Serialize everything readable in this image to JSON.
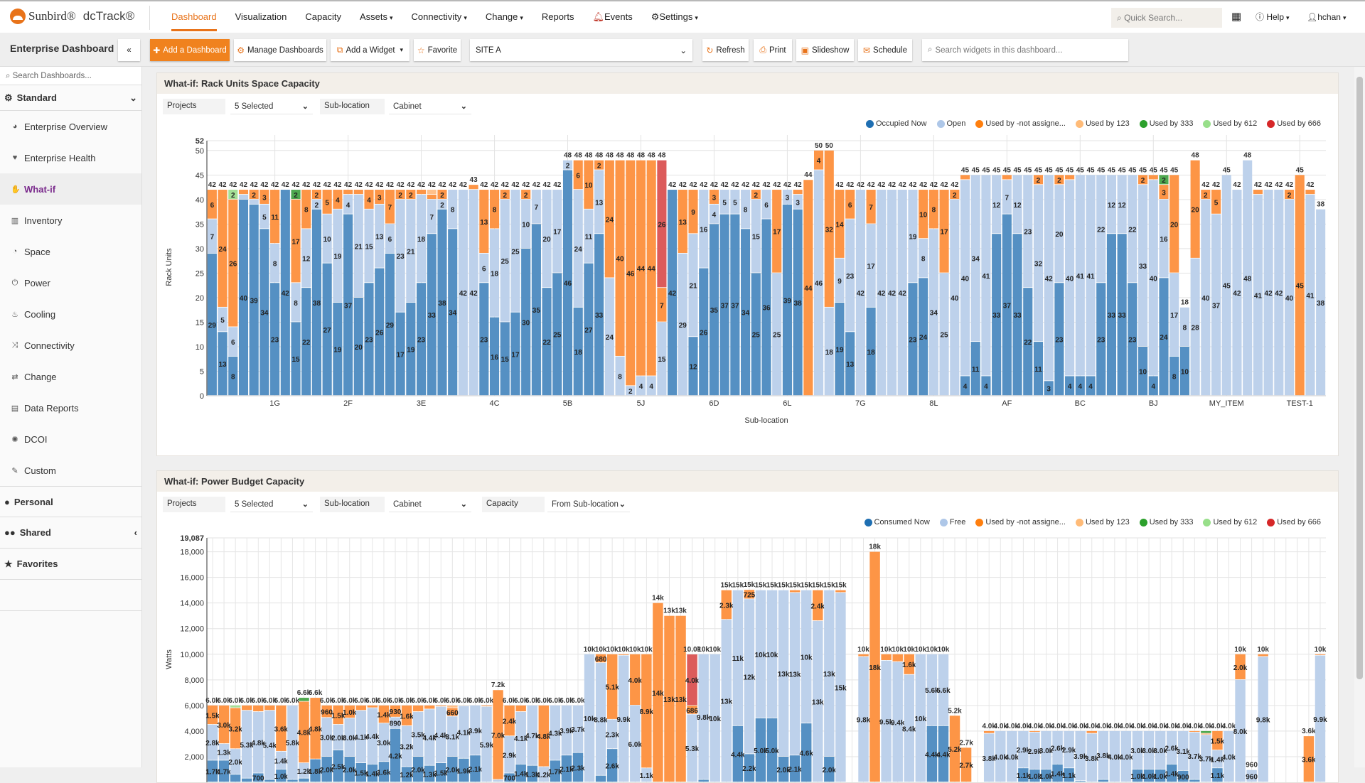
{
  "app": {
    "brand": "Sunbird®",
    "product": "dcTrack®"
  },
  "nav": {
    "items": [
      {
        "label": "Dashboard",
        "active": true
      },
      {
        "label": "Visualization"
      },
      {
        "label": "Capacity"
      },
      {
        "label": "Assets",
        "caret": true
      },
      {
        "label": "Connectivity",
        "caret": true
      },
      {
        "label": "Change",
        "caret": true
      },
      {
        "label": "Reports"
      },
      {
        "label": "Events",
        "icon": "bell-icon"
      },
      {
        "label": "Settings",
        "icon": "gear-icon",
        "caret": true
      }
    ],
    "quick_search_placeholder": "Quick Search...",
    "help": "Help",
    "user": "hchan"
  },
  "toolbar": {
    "title": "Enterprise Dashboard",
    "collapse": "«",
    "add_dashboard": "Add a Dashboard",
    "manage": "Manage Dashboards",
    "add_widget": "Add a Widget",
    "favorite": "Favorite",
    "site": "SITE A",
    "refresh": "Refresh",
    "print": "Print",
    "slideshow": "Slideshow",
    "schedule": "Schedule",
    "widget_search_placeholder": "Search widgets in this dashboard..."
  },
  "sidebar": {
    "search_placeholder": "Search Dashboards...",
    "standard": "Standard",
    "items": [
      {
        "label": "Enterprise Overview",
        "icon": "globe-icon",
        "glyph": "◕"
      },
      {
        "label": "Enterprise Health",
        "icon": "heartbeat-icon",
        "glyph": "♥"
      },
      {
        "label": "What-if",
        "icon": "thumbs-up-icon",
        "glyph": "✋",
        "active": true
      },
      {
        "label": "Inventory",
        "icon": "barcode-icon",
        "glyph": "▥"
      },
      {
        "label": "Space",
        "icon": "dashboard-gauge-icon",
        "glyph": "◔"
      },
      {
        "label": "Power",
        "icon": "power-icon",
        "glyph": "⏻"
      },
      {
        "label": "Cooling",
        "icon": "fire-icon",
        "glyph": "♨"
      },
      {
        "label": "Connectivity",
        "icon": "random-icon",
        "glyph": "⤨"
      },
      {
        "label": "Change",
        "icon": "exchange-icon",
        "glyph": "⇄"
      },
      {
        "label": "Data Reports",
        "icon": "table-icon",
        "glyph": "▤"
      },
      {
        "label": "DCOI",
        "icon": "cog-icon",
        "glyph": "✺"
      },
      {
        "label": "Custom",
        "icon": "wrench-icon",
        "glyph": "✎"
      }
    ],
    "personal": "Personal",
    "shared": "Shared",
    "favorites": "Favorites"
  },
  "colors": {
    "occupied": "#5590c3",
    "open": "#bdd1eb",
    "not_assigned": "#fd9546",
    "by123": "#ffc08a",
    "by333": "#4fa84f",
    "by612": "#a4e096",
    "by666": "#dc5b5b",
    "legend": [
      "#1f6fb2",
      "#aec7e8",
      "#ff7f0e",
      "#ffbb78",
      "#2ca02c",
      "#98df8a",
      "#d62728"
    ]
  },
  "widget1": {
    "title": "What-if: Rack Units Space Capacity",
    "filters": [
      {
        "label": "Projects",
        "value": "5 Selected"
      },
      {
        "label": "Sub-location",
        "value": "Cabinet"
      }
    ],
    "legend": [
      "Occupied Now",
      "Open",
      "Used by -not assigne...",
      "Used by 123",
      "Used by 333",
      "Used by 612",
      "Used by 666"
    ]
  },
  "widget2": {
    "title": "What-if: Power Budget Capacity",
    "filters": [
      {
        "label": "Projects",
        "value": "5 Selected"
      },
      {
        "label": "Sub-location",
        "value": "Cabinet"
      },
      {
        "label": "Capacity",
        "value": "From Sub-location"
      }
    ],
    "legend": [
      "Consumed Now",
      "Free",
      "Used by -not assigne...",
      "Used by 123",
      "Used by 333",
      "Used by 612",
      "Used by 666"
    ]
  },
  "chart_data": [
    {
      "type": "bar",
      "stacked": true,
      "ylabel": "Rack Units",
      "xlabel": "Sub-location",
      "ylim": [
        0,
        52
      ],
      "yticks": [
        0,
        5,
        10,
        15,
        20,
        25,
        30,
        35,
        40,
        45,
        50,
        52
      ],
      "x_tick_labels": [
        "1G",
        "2F",
        "3E",
        "4C",
        "5B",
        "5J",
        "6D",
        "6L",
        "7G",
        "8L",
        "AF",
        "BC",
        "BJ",
        "MY_ITEM",
        "TEST-1"
      ],
      "series_order": [
        "Occupied Now",
        "Open",
        "Used by -not assigned",
        "Used by 123",
        "Used by 333",
        "Used by 612",
        "Used by 666"
      ],
      "bars": [
        [
          29,
          7,
          6
        ],
        [
          13,
          5,
          24
        ],
        [
          8,
          6,
          26,
          0,
          0,
          2
        ],
        [
          40,
          1,
          1
        ],
        [
          39,
          1,
          2
        ],
        [
          34,
          5,
          3
        ],
        [
          23,
          8,
          11
        ],
        [
          42
        ],
        [
          15,
          8,
          17,
          0,
          2
        ],
        [
          22,
          12,
          8
        ],
        [
          38,
          2,
          2
        ],
        [
          27,
          10,
          5
        ],
        [
          19,
          19,
          4
        ],
        [
          37,
          4,
          1
        ],
        [
          20,
          21,
          1
        ],
        [
          23,
          15,
          4
        ],
        [
          26,
          13,
          3
        ],
        [
          29,
          6,
          7
        ],
        [
          17,
          23,
          2
        ],
        [
          19,
          21,
          2
        ],
        [
          23,
          18,
          1
        ],
        [
          33,
          7,
          1,
          1
        ],
        [
          38,
          2,
          2
        ],
        [
          34,
          8
        ],
        [
          0,
          42
        ],
        [
          0,
          42,
          1
        ],
        [
          23,
          6,
          13
        ],
        [
          16,
          18,
          8
        ],
        [
          15,
          25,
          2
        ],
        [
          17,
          25
        ],
        [
          30,
          10,
          2
        ],
        [
          35,
          7
        ],
        [
          22,
          20
        ],
        [
          25,
          17
        ],
        [
          46,
          2
        ],
        [
          18,
          24,
          6
        ],
        [
          27,
          11,
          10
        ],
        [
          33,
          13,
          2
        ],
        [
          0,
          24,
          24
        ],
        [
          0,
          8,
          40
        ],
        [
          0,
          2,
          46
        ],
        [
          0,
          4,
          44
        ],
        [
          0,
          4,
          44
        ],
        [
          0,
          15,
          7,
          0,
          0,
          0,
          26
        ],
        [
          42
        ],
        [
          0,
          29,
          13
        ],
        [
          12,
          21,
          9
        ],
        [
          26,
          16
        ],
        [
          35,
          4,
          3
        ],
        [
          37,
          5
        ],
        [
          37,
          5
        ],
        [
          34,
          8
        ],
        [
          25,
          15,
          2
        ],
        [
          36,
          6
        ],
        [
          0,
          25,
          17
        ],
        [
          39,
          3
        ],
        [
          38,
          3,
          1
        ],
        [
          0,
          0,
          44
        ],
        [
          0,
          46,
          4
        ],
        [
          0,
          18,
          32
        ],
        [
          19,
          9,
          14
        ],
        [
          13,
          23,
          6
        ],
        [
          0,
          42
        ],
        [
          18,
          17,
          7
        ],
        [
          0,
          42
        ],
        [
          0,
          42
        ],
        [
          0,
          42
        ],
        [
          23,
          19
        ],
        [
          24,
          8,
          10
        ],
        [
          0,
          34,
          8
        ],
        [
          0,
          25,
          17
        ],
        [
          0,
          40,
          2
        ],
        [
          4,
          40,
          1
        ],
        [
          11,
          34
        ],
        [
          4,
          41
        ],
        [
          33,
          12
        ],
        [
          37,
          7,
          1
        ],
        [
          33,
          12
        ],
        [
          22,
          23
        ],
        [
          11,
          32,
          2
        ],
        [
          3,
          42
        ],
        [
          23,
          20,
          2
        ],
        [
          4,
          40,
          1
        ],
        [
          4,
          41
        ],
        [
          4,
          41
        ],
        [
          23,
          22
        ],
        [
          33,
          12
        ],
        [
          33,
          12
        ],
        [
          23,
          22
        ],
        [
          10,
          33,
          2
        ],
        [
          4,
          40,
          1
        ],
        [
          24,
          16,
          3,
          0,
          2
        ],
        [
          8,
          17,
          20
        ],
        [
          10,
          8
        ],
        [
          0,
          28,
          20
        ],
        [
          0,
          40,
          2
        ],
        [
          0,
          37,
          5
        ],
        [
          0,
          45
        ],
        [
          0,
          42
        ],
        [
          0,
          48
        ],
        [
          0,
          41,
          1
        ],
        [
          0,
          42
        ],
        [
          0,
          42
        ],
        [
          0,
          40,
          2
        ],
        [
          0,
          0,
          45
        ],
        [
          0,
          41,
          1
        ],
        [
          0,
          38
        ]
      ]
    },
    {
      "type": "bar",
      "stacked": true,
      "ylabel": "Watts",
      "ylim": [
        0,
        19087
      ],
      "yticks": [
        2000,
        4000,
        6000,
        8000,
        10000,
        12000,
        14000,
        16000,
        18000,
        19087
      ],
      "series_order": [
        "Consumed Now",
        "Free",
        "Used by -not assigned",
        "Used by 123",
        "Used by 333",
        "Used by 612",
        "Used by 666"
      ],
      "bars": [
        [
          1700,
          2800,
          1500
        ],
        [
          1700,
          1300,
          3000
        ],
        [
          600,
          2000,
          3200,
          0,
          0,
          200
        ],
        [
          300,
          5300,
          400
        ],
        [
          700,
          4800,
          500
        ],
        [
          200,
          5400,
          400
        ],
        [
          1000,
          1400,
          3600
        ],
        [
          200,
          5800
        ],
        [
          300,
          1200,
          4800,
          0,
          300
        ],
        [
          1800,
          0,
          4800
        ],
        [
          2000,
          3040,
          960
        ],
        [
          2500,
          2000,
          1500
        ],
        [
          2000,
          3000,
          1000
        ],
        [
          1500,
          4100,
          400
        ],
        [
          1400,
          4400,
          200
        ],
        [
          1600,
          3000,
          1400
        ],
        [
          4180,
          890,
          930
        ],
        [
          1200,
          3200,
          1600
        ],
        [
          2000,
          3500,
          500
        ],
        [
          1300,
          4400,
          300
        ],
        [
          1500,
          4400,
          100
        ],
        [
          2000,
          3140,
          660,
          200
        ],
        [
          1850,
          4100,
          50
        ],
        [
          2100,
          3900
        ],
        [
          0,
          5900,
          100
        ],
        [
          0,
          200,
          7000
        ],
        [
          700,
          2900,
          2400
        ],
        [
          1400,
          4100,
          500
        ],
        [
          1300,
          4700
        ],
        [
          0,
          1200,
          4800
        ],
        [
          1700,
          4300
        ],
        [
          2100,
          3900
        ],
        [
          2300,
          3700
        ],
        [
          0,
          10000
        ],
        [
          520,
          8800,
          680
        ],
        [
          2600,
          2300,
          5100
        ],
        [
          0,
          9900,
          100
        ],
        [
          0,
          6000,
          4000
        ],
        [
          0,
          1100,
          8900
        ],
        [
          0,
          0,
          14000
        ],
        [
          0,
          0,
          13000
        ],
        [
          0,
          0,
          13000
        ],
        [
          0,
          5300,
          686,
          0,
          0,
          0,
          4000
        ],
        [
          200,
          9800
        ],
        [
          0,
          10000
        ],
        [
          0,
          12700,
          2300
        ],
        [
          4400,
          10600
        ],
        [
          2200,
          12100,
          725
        ],
        [
          5000,
          10000
        ],
        [
          5000,
          10000
        ],
        [
          2000,
          13000
        ],
        [
          2100,
          12700,
          200
        ],
        [
          4600,
          10400
        ],
        [
          0,
          12600,
          2400
        ],
        [
          2000,
          13000
        ],
        [
          0,
          14800,
          200
        ],
        [
          0
        ],
        [
          0,
          9800,
          200
        ],
        [
          0,
          0,
          18000
        ],
        [
          0,
          9500,
          500
        ],
        [
          0,
          9400,
          600
        ],
        [
          0,
          8400,
          1600
        ],
        [
          0,
          10000
        ],
        [
          4400,
          5600
        ],
        [
          4400,
          5600
        ],
        [
          0,
          0,
          5200
        ],
        [
          0,
          0,
          2700
        ],
        [
          0
        ],
        [
          0,
          3800,
          200
        ],
        [
          0,
          4000
        ],
        [
          0,
          4000
        ],
        [
          1100,
          2900
        ],
        [
          1000,
          2900,
          100
        ],
        [
          1000,
          3000
        ],
        [
          1400,
          2600
        ],
        [
          1100,
          2900
        ],
        [
          100,
          3900
        ],
        [
          0,
          3800,
          200
        ],
        [
          200,
          3800
        ],
        [
          0,
          4000
        ],
        [
          0,
          4000
        ],
        [
          1000,
          3000
        ],
        [
          1000,
          3000
        ],
        [
          1000,
          3000
        ],
        [
          1400,
          2600
        ],
        [
          900,
          3100
        ],
        [
          200,
          3700,
          100
        ],
        [
          0,
          3700,
          100,
          0,
          200
        ],
        [
          1100,
          1400,
          1500
        ],
        [
          0,
          4000
        ],
        [
          0,
          8000,
          2000
        ],
        [
          0,
          960
        ],
        [
          0,
          9800,
          200
        ],
        [
          0
        ],
        [
          0
        ],
        [
          0
        ],
        [
          0,
          0,
          3600
        ],
        [
          0,
          9900,
          100
        ]
      ]
    }
  ]
}
